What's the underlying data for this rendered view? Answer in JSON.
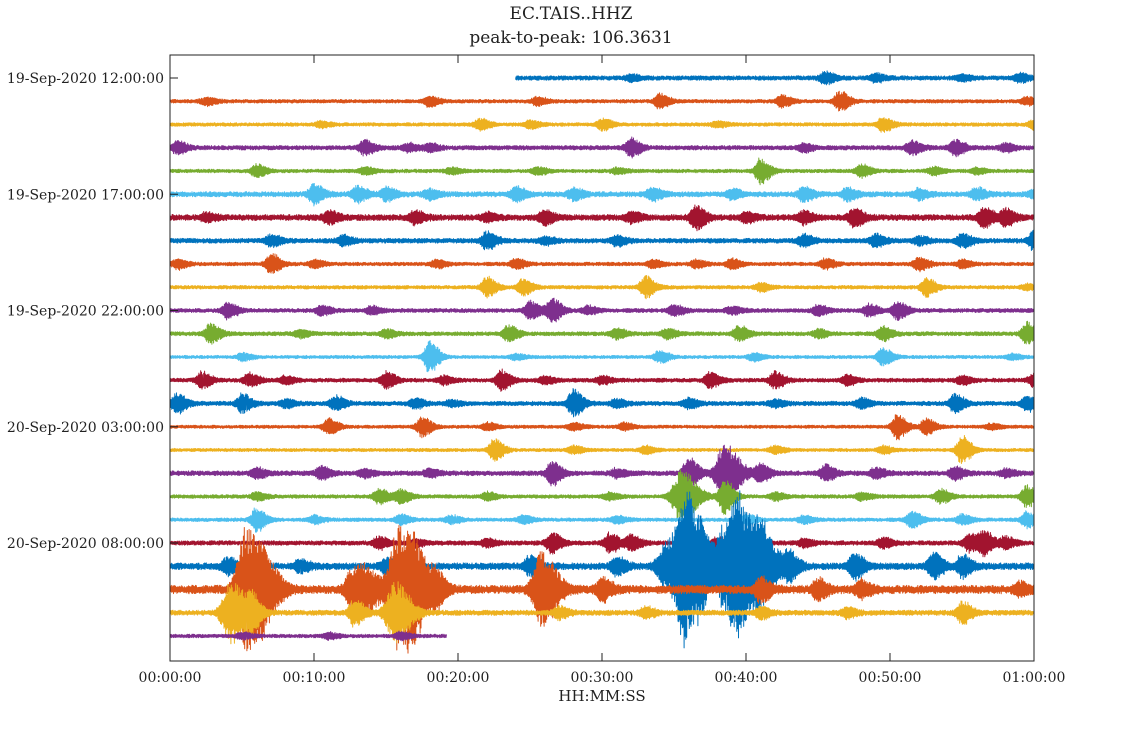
{
  "chart_data": {
    "type": "line",
    "title": "EC.TAIS..HHZ",
    "subtitle": "peak-to-peak:  106.3631",
    "xlabel": "HH:MM:SS",
    "ylabel": "",
    "x_tick_labels": [
      "00:00:00",
      "00:10:00",
      "00:20:00",
      "00:30:00",
      "00:40:00",
      "00:50:00",
      "01:00:00"
    ],
    "xlim_minutes": [
      0,
      60
    ],
    "y_tick_labels": [
      "19-Sep-2020 12:00:00",
      "19-Sep-2020 17:00:00",
      "19-Sep-2020 22:00:00",
      "20-Sep-2020 03:00:00",
      "20-Sep-2020 08:00:00"
    ],
    "y_tick_row_index": [
      0,
      5,
      10,
      15,
      20
    ],
    "grid": false,
    "legend": "none",
    "color_cycle": [
      "#0072BD",
      "#D95319",
      "#EDB120",
      "#7E2F8E",
      "#77AC30",
      "#4DBEEE",
      "#A2142F"
    ],
    "traces": [
      {
        "hour": "12:00",
        "color": "#0072BD",
        "start_min": 24.0,
        "end_min": 60,
        "noise": 2.2,
        "events": [
          [
            45.5,
            6
          ],
          [
            49,
            4
          ],
          [
            55,
            3
          ],
          [
            59,
            4
          ],
          [
            32,
            3
          ]
        ]
      },
      {
        "hour": "13:00",
        "color": "#D95319",
        "start_min": 0,
        "end_min": 60,
        "noise": 1.8,
        "events": [
          [
            2.5,
            4
          ],
          [
            18,
            5
          ],
          [
            25.5,
            4
          ],
          [
            34,
            7
          ],
          [
            42.5,
            6
          ],
          [
            46.5,
            10
          ],
          [
            59.5,
            4
          ]
        ]
      },
      {
        "hour": "14:00",
        "color": "#EDB120",
        "start_min": 0,
        "end_min": 60,
        "noise": 1.8,
        "events": [
          [
            10.5,
            3
          ],
          [
            21.5,
            6
          ],
          [
            25,
            4
          ],
          [
            30,
            6
          ],
          [
            38,
            3
          ],
          [
            49.5,
            7
          ],
          [
            60,
            5
          ]
        ]
      },
      {
        "hour": "15:00",
        "color": "#7E2F8E",
        "start_min": 0,
        "end_min": 60,
        "noise": 2.2,
        "events": [
          [
            0.5,
            6
          ],
          [
            13.5,
            7
          ],
          [
            16.5,
            4
          ],
          [
            18,
            4
          ],
          [
            32,
            9
          ],
          [
            44,
            4
          ],
          [
            51.5,
            7
          ],
          [
            54.5,
            8
          ],
          [
            58,
            4
          ]
        ]
      },
      {
        "hour": "16:00",
        "color": "#77AC30",
        "start_min": 0,
        "end_min": 60,
        "noise": 1.8,
        "events": [
          [
            6,
            6
          ],
          [
            13.5,
            4
          ],
          [
            19.5,
            3
          ],
          [
            25.5,
            4
          ],
          [
            31,
            3
          ],
          [
            41,
            13
          ],
          [
            48,
            6
          ],
          [
            53,
            4
          ],
          [
            56,
            3
          ]
        ]
      },
      {
        "hour": "17:00",
        "color": "#4DBEEE",
        "start_min": 0,
        "end_min": 60,
        "noise": 2.6,
        "events": [
          [
            10,
            10
          ],
          [
            13,
            8
          ],
          [
            15,
            7
          ],
          [
            18,
            5
          ],
          [
            24,
            7
          ],
          [
            28,
            6
          ],
          [
            33.5,
            6
          ],
          [
            39,
            5
          ],
          [
            44,
            7
          ],
          [
            47,
            6
          ],
          [
            52,
            5
          ],
          [
            56,
            6
          ],
          [
            60,
            4
          ]
        ]
      },
      {
        "hour": "18:00",
        "color": "#A2142F",
        "start_min": 0,
        "end_min": 60,
        "noise": 3.0,
        "events": [
          [
            2.5,
            4
          ],
          [
            11,
            6
          ],
          [
            17,
            6
          ],
          [
            22,
            4
          ],
          [
            26,
            7
          ],
          [
            32,
            5
          ],
          [
            36.5,
            12
          ],
          [
            40,
            5
          ],
          [
            44,
            6
          ],
          [
            47.5,
            9
          ],
          [
            56.5,
            10
          ],
          [
            58,
            8
          ]
        ]
      },
      {
        "hour": "19:00",
        "color": "#0072BD",
        "start_min": 0,
        "end_min": 60,
        "noise": 2.4,
        "events": [
          [
            7,
            6
          ],
          [
            12,
            5
          ],
          [
            22,
            9
          ],
          [
            26,
            4
          ],
          [
            31,
            5
          ],
          [
            44,
            6
          ],
          [
            49,
            6
          ],
          [
            52,
            4
          ],
          [
            55,
            7
          ],
          [
            60,
            10
          ]
        ]
      },
      {
        "hour": "20:00",
        "color": "#D95319",
        "start_min": 0,
        "end_min": 60,
        "noise": 1.8,
        "events": [
          [
            0.5,
            5
          ],
          [
            7,
            10
          ],
          [
            10,
            4
          ],
          [
            18.5,
            4
          ],
          [
            24,
            5
          ],
          [
            33.5,
            4
          ],
          [
            36.5,
            4
          ],
          [
            39,
            5
          ],
          [
            45.5,
            5
          ],
          [
            52,
            7
          ],
          [
            55,
            4
          ]
        ]
      },
      {
        "hour": "21:00",
        "color": "#EDB120",
        "start_min": 0,
        "end_min": 60,
        "noise": 1.8,
        "events": [
          [
            22,
            10
          ],
          [
            24.5,
            8
          ],
          [
            33,
            11
          ],
          [
            41,
            4
          ],
          [
            52.5,
            9
          ],
          [
            59.5,
            3
          ]
        ]
      },
      {
        "hour": "22:00",
        "color": "#7E2F8E",
        "start_min": 0,
        "end_min": 60,
        "noise": 2.0,
        "events": [
          [
            4,
            8
          ],
          [
            10.5,
            5
          ],
          [
            14,
            4
          ],
          [
            25,
            9
          ],
          [
            26.5,
            13
          ],
          [
            29,
            4
          ],
          [
            35,
            5
          ],
          [
            39,
            4
          ],
          [
            45,
            5
          ],
          [
            48.5,
            6
          ],
          [
            50.5,
            9
          ]
        ]
      },
      {
        "hour": "23:00",
        "color": "#77AC30",
        "start_min": 0,
        "end_min": 60,
        "noise": 2.0,
        "events": [
          [
            2.8,
            10
          ],
          [
            9,
            4
          ],
          [
            15,
            4
          ],
          [
            23.5,
            8
          ],
          [
            31,
            5
          ],
          [
            34.5,
            5
          ],
          [
            39.5,
            8
          ],
          [
            45,
            4
          ],
          [
            49.5,
            7
          ],
          [
            59.5,
            11
          ]
        ]
      },
      {
        "hour": "00:00",
        "color": "#4DBEEE",
        "start_min": 0,
        "end_min": 60,
        "noise": 1.6,
        "events": [
          [
            5,
            4
          ],
          [
            18,
            16
          ],
          [
            24,
            3
          ],
          [
            34,
            6
          ],
          [
            40.5,
            4
          ],
          [
            49.5,
            9
          ],
          [
            58.5,
            3
          ]
        ]
      },
      {
        "hour": "01:00",
        "color": "#A2142F",
        "start_min": 0,
        "end_min": 60,
        "noise": 2.0,
        "events": [
          [
            2.2,
            8
          ],
          [
            5.5,
            7
          ],
          [
            8,
            4
          ],
          [
            15,
            8
          ],
          [
            19,
            4
          ],
          [
            23,
            10
          ],
          [
            26,
            4
          ],
          [
            30,
            4
          ],
          [
            37.5,
            8
          ],
          [
            42,
            8
          ],
          [
            47,
            5
          ],
          [
            55,
            4
          ],
          [
            60,
            7
          ]
        ]
      },
      {
        "hour": "02:00",
        "color": "#0072BD",
        "start_min": 0,
        "end_min": 60,
        "noise": 2.2,
        "events": [
          [
            0.5,
            10
          ],
          [
            5,
            9
          ],
          [
            8,
            4
          ],
          [
            11.5,
            7
          ],
          [
            17,
            5
          ],
          [
            19.5,
            3
          ],
          [
            28,
            13
          ],
          [
            31,
            4
          ],
          [
            36,
            5
          ],
          [
            42,
            4
          ],
          [
            48,
            5
          ],
          [
            54.5,
            9
          ],
          [
            59.5,
            8
          ]
        ]
      },
      {
        "hour": "03:00",
        "color": "#D95319",
        "start_min": 0,
        "end_min": 60,
        "noise": 1.6,
        "events": [
          [
            11,
            8
          ],
          [
            17.5,
            10
          ],
          [
            22,
            4
          ],
          [
            28,
            4
          ],
          [
            31.5,
            4
          ],
          [
            50.5,
            12
          ],
          [
            52.5,
            8
          ],
          [
            57,
            3
          ]
        ]
      },
      {
        "hour": "04:00",
        "color": "#EDB120",
        "start_min": 0,
        "end_min": 60,
        "noise": 1.6,
        "events": [
          [
            22.5,
            11
          ],
          [
            28,
            4
          ],
          [
            33,
            4
          ],
          [
            42,
            4
          ],
          [
            49.5,
            4
          ],
          [
            55,
            14
          ]
        ]
      },
      {
        "hour": "05:00",
        "color": "#7E2F8E",
        "start_min": 0,
        "end_min": 60,
        "noise": 2.4,
        "events": [
          [
            6,
            5
          ],
          [
            10.5,
            6
          ],
          [
            13.5,
            4
          ],
          [
            18,
            4
          ],
          [
            26.5,
            12
          ],
          [
            31,
            4
          ],
          [
            36,
            16
          ],
          [
            38.5,
            28
          ],
          [
            41,
            9
          ],
          [
            45.5,
            8
          ],
          [
            49,
            5
          ],
          [
            54.5,
            6
          ],
          [
            58,
            4
          ]
        ]
      },
      {
        "hour": "06:00",
        "color": "#77AC30",
        "start_min": 0,
        "end_min": 60,
        "noise": 1.8,
        "events": [
          [
            6,
            4
          ],
          [
            14.5,
            8
          ],
          [
            16,
            7
          ],
          [
            22,
            4
          ],
          [
            30.5,
            4
          ],
          [
            35.5,
            26
          ],
          [
            38.5,
            18
          ],
          [
            42,
            4
          ],
          [
            48,
            4
          ],
          [
            53.5,
            7
          ],
          [
            59.5,
            11
          ]
        ]
      },
      {
        "hour": "07:00",
        "color": "#4DBEEE",
        "start_min": 0,
        "end_min": 60,
        "noise": 1.8,
        "events": [
          [
            6,
            12
          ],
          [
            10,
            4
          ],
          [
            16,
            5
          ],
          [
            19.5,
            4
          ],
          [
            24.5,
            4
          ],
          [
            31,
            4
          ],
          [
            40,
            5
          ],
          [
            44,
            4
          ],
          [
            51.5,
            8
          ],
          [
            55,
            5
          ],
          [
            59.5,
            8
          ]
        ]
      },
      {
        "hour": "08:00",
        "color": "#A2142F",
        "start_min": 0,
        "end_min": 60,
        "noise": 2.2,
        "events": [
          [
            14.5,
            6
          ],
          [
            17,
            4
          ],
          [
            22,
            4
          ],
          [
            26.5,
            10
          ],
          [
            30.5,
            10
          ],
          [
            32,
            8
          ],
          [
            38,
            6
          ],
          [
            44,
            4
          ],
          [
            49.5,
            5
          ],
          [
            55.5,
            9
          ],
          [
            56.5,
            12
          ],
          [
            58,
            6
          ]
        ]
      },
      {
        "hour": "09:00",
        "color": "#0072BD",
        "start_min": 0,
        "end_min": 60,
        "noise": 3.4,
        "events": [
          [
            4,
            8
          ],
          [
            9,
            6
          ],
          [
            15,
            8
          ],
          [
            25,
            10
          ],
          [
            31,
            9
          ],
          [
            34.5,
            24
          ],
          [
            35.8,
            75
          ],
          [
            37,
            20
          ],
          [
            38.5,
            40
          ],
          [
            39.5,
            55
          ],
          [
            41,
            38
          ],
          [
            43,
            14
          ],
          [
            47.5,
            14
          ],
          [
            53,
            13
          ],
          [
            55,
            11
          ]
        ]
      },
      {
        "hour": "10:00",
        "color": "#D95319",
        "start_min": 0,
        "end_min": 60,
        "noise": 4.2,
        "events": [
          [
            5.2,
            60
          ],
          [
            6.5,
            28
          ],
          [
            12.5,
            16
          ],
          [
            13.5,
            22
          ],
          [
            15.8,
            60
          ],
          [
            17,
            34
          ],
          [
            18.5,
            14
          ],
          [
            25.8,
            36
          ],
          [
            30,
            12
          ],
          [
            41,
            12
          ],
          [
            45,
            10
          ],
          [
            48,
            8
          ],
          [
            59,
            6
          ]
        ]
      },
      {
        "hour": "11:00",
        "color": "#EDB120",
        "start_min": 0,
        "end_min": 60,
        "noise": 2.6,
        "events": [
          [
            4.2,
            30
          ],
          [
            5.6,
            18
          ],
          [
            12.8,
            14
          ],
          [
            15.6,
            30
          ],
          [
            27,
            6
          ],
          [
            33,
            6
          ],
          [
            41,
            6
          ],
          [
            47,
            5
          ],
          [
            55,
            11
          ]
        ]
      },
      {
        "hour": "12:00",
        "color": "#7E2F8E",
        "start_min": 0,
        "end_min": 19.2,
        "noise": 1.8,
        "events": [
          [
            5,
            3
          ],
          [
            11,
            3
          ],
          [
            16,
            4
          ]
        ]
      }
    ]
  }
}
